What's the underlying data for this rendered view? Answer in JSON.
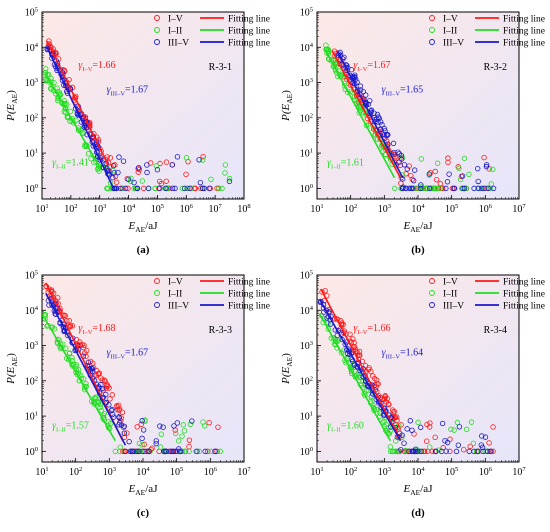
{
  "figure": {
    "legend_labels": [
      "I–V",
      "I–II",
      "III–V"
    ],
    "fitting_line_label": "Fitting line",
    "y_axis_label": "P(E",
    "y_axis_sub": "AE",
    "x_axis_label": "E",
    "x_axis_sub": "AE",
    "x_axis_unit": "/aJ",
    "colors": {
      "I-V": "#ff1a1a",
      "I-II": "#22dd22",
      "III-V": "#1a1acc"
    }
  },
  "chart_data": [
    {
      "type": "scatter",
      "panel_label": "(a)",
      "specimen": "R-3-1",
      "xscale": "log",
      "yscale": "log",
      "xlim": [
        10,
        100000000
      ],
      "ylim": [
        0.5,
        100000
      ],
      "x_ticks": [
        "10^1",
        "10^2",
        "10^3",
        "10^4",
        "10^5",
        "10^6",
        "10^7",
        "10^8"
      ],
      "y_ticks": [
        "10^0",
        "10^1",
        "10^2",
        "10^3",
        "10^4",
        "10^5"
      ],
      "legend_position": "top-right",
      "series": [
        {
          "name": "I–V",
          "color": "#ff1a1a",
          "gamma": 1.66,
          "x_start": 15,
          "y_start": 15000,
          "x_end": 2000,
          "y_end": 4.5,
          "annotation": {
            "sym": "γ",
            "sub": "I–V",
            "text": "=1.66"
          }
        },
        {
          "name": "I–II",
          "color": "#22dd22",
          "gamma": 1.41,
          "x_start": 13,
          "y_start": 1800,
          "x_end": 1000,
          "y_end": 4,
          "annotation": {
            "sym": "γ",
            "sub": "I–II",
            "text": "=1.41"
          }
        },
        {
          "name": "III–V",
          "color": "#1a1acc",
          "gamma": 1.67,
          "x_start": 15,
          "y_start": 10000,
          "x_end": 3000,
          "y_end": 1,
          "annotation": {
            "sym": "γ",
            "sub": "III–V",
            "text": "=1.67"
          }
        }
      ]
    },
    {
      "type": "scatter",
      "panel_label": "(b)",
      "specimen": "R-3-2",
      "xscale": "log",
      "yscale": "log",
      "xlim": [
        10,
        10000000
      ],
      "ylim": [
        0.5,
        100000
      ],
      "x_ticks": [
        "10^1",
        "10^2",
        "10^3",
        "10^4",
        "10^5",
        "10^6",
        "10^7"
      ],
      "y_ticks": [
        "10^0",
        "10^1",
        "10^2",
        "10^3",
        "10^4",
        "10^5"
      ],
      "legend_position": "top-right",
      "series": [
        {
          "name": "I–V",
          "color": "#ff1a1a",
          "gamma": 1.67,
          "x_start": 28,
          "y_start": 8000,
          "x_end": 3000,
          "y_end": 2,
          "annotation": {
            "sym": "γ",
            "sub": "I–V",
            "text": "=1.67"
          }
        },
        {
          "name": "I–II",
          "color": "#22dd22",
          "gamma": 1.61,
          "x_start": 18,
          "y_start": 8000,
          "x_end": 2000,
          "y_end": 2,
          "annotation": {
            "sym": "γ",
            "sub": "I–II",
            "text": "=1.61"
          }
        },
        {
          "name": "III–V",
          "color": "#1a1acc",
          "gamma": 1.65,
          "x_start": 40,
          "y_start": 8000,
          "x_end": 3500,
          "y_end": 2,
          "annotation": {
            "sym": "γ",
            "sub": "III–V",
            "text": "=1.65"
          }
        }
      ]
    },
    {
      "type": "scatter",
      "panel_label": "(c)",
      "specimen": "R-3-3",
      "xscale": "log",
      "yscale": "log",
      "xlim": [
        10,
        10000000
      ],
      "ylim": [
        0.5,
        100000
      ],
      "x_ticks": [
        "10^1",
        "10^2",
        "10^3",
        "10^4",
        "10^5",
        "10^6",
        "10^7"
      ],
      "y_ticks": [
        "10^0",
        "10^1",
        "10^2",
        "10^3",
        "10^4",
        "10^5"
      ],
      "legend_position": "top-right",
      "series": [
        {
          "name": "I–V",
          "color": "#ff1a1a",
          "gamma": 1.68,
          "x_start": 13,
          "y_start": 60000,
          "x_end": 2500,
          "y_end": 2,
          "annotation": {
            "sym": "γ",
            "sub": "I–V",
            "text": "=1.68"
          }
        },
        {
          "name": "I–II",
          "color": "#22dd22",
          "gamma": 1.57,
          "x_start": 12,
          "y_start": 6000,
          "x_end": 1500,
          "y_end": 2,
          "annotation": {
            "sym": "γ",
            "sub": "I–II",
            "text": "=1.57"
          }
        },
        {
          "name": "III–V",
          "color": "#1a1acc",
          "gamma": 1.67,
          "x_start": 13,
          "y_start": 30000,
          "x_end": 3000,
          "y_end": 1.5,
          "annotation": {
            "sym": "γ",
            "sub": "III–V",
            "text": "=1.67"
          }
        }
      ]
    },
    {
      "type": "scatter",
      "panel_label": "(d)",
      "specimen": "R-3-4",
      "xscale": "log",
      "yscale": "log",
      "xlim": [
        10,
        10000000
      ],
      "ylim": [
        0.5,
        100000
      ],
      "x_ticks": [
        "10^1",
        "10^2",
        "10^3",
        "10^4",
        "10^5",
        "10^6",
        "10^7"
      ],
      "y_ticks": [
        "10^0",
        "10^1",
        "10^2",
        "10^3",
        "10^4",
        "10^5"
      ],
      "legend_position": "top-right",
      "series": [
        {
          "name": "I–V",
          "color": "#ff1a1a",
          "gamma": 1.66,
          "x_start": 13,
          "y_start": 40000,
          "x_end": 2500,
          "y_end": 3,
          "annotation": {
            "sym": "γ",
            "sub": "I–V",
            "text": "=1.66"
          }
        },
        {
          "name": "I–II",
          "color": "#22dd22",
          "gamma": 1.6,
          "x_start": 12,
          "y_start": 8000,
          "x_end": 1500,
          "y_end": 2,
          "annotation": {
            "sym": "γ",
            "sub": "I–II",
            "text": "=1.60"
          }
        },
        {
          "name": "III–V",
          "color": "#1a1acc",
          "gamma": 1.64,
          "x_start": 12,
          "y_start": 20000,
          "x_end": 3000,
          "y_end": 2,
          "annotation": {
            "sym": "γ",
            "sub": "III–V",
            "text": "=1.64"
          }
        }
      ]
    }
  ]
}
